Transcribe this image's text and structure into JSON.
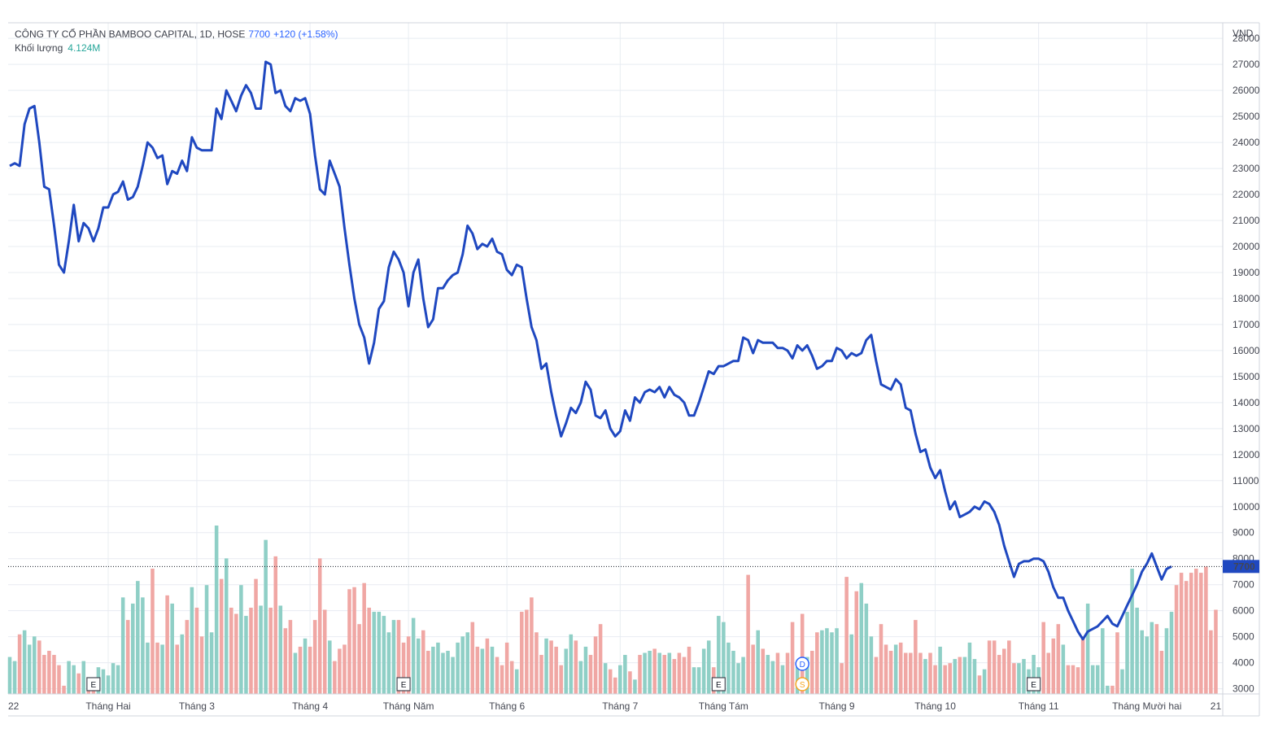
{
  "header": {
    "symbol": "CÔNG TY CỔ PHẦN BAMBOO CAPITAL, 1D, HOSE",
    "last_price": "7700",
    "change": "+120 (+1.58%)",
    "volume_label": "Khối lượng",
    "volume_value": "4.124M"
  },
  "colors": {
    "line": "#1f48c0",
    "vol_up": "#8fcfc6",
    "vol_down": "#f0a7a4",
    "grid": "#e8ecf2",
    "price_label_bg": "#1f48c0"
  },
  "markers": [
    {
      "type": "earnings",
      "label": "E",
      "month": "Tháng Hai"
    },
    {
      "type": "earnings",
      "label": "E",
      "month": "Tháng Năm"
    },
    {
      "type": "earnings",
      "label": "E",
      "month": "Tháng Tám"
    },
    {
      "type": "dividend",
      "label": "D",
      "month": "Tháng Tám"
    },
    {
      "type": "split",
      "label": "S",
      "month": "Tháng Tám"
    },
    {
      "type": "earnings",
      "label": "E",
      "month": "Tháng 11"
    }
  ],
  "chart_data": {
    "type": "line",
    "title": "CÔNG TY CỔ PHẦN BAMBOO CAPITAL, 1D, HOSE",
    "currency": "VND",
    "y_axis_label": "VND",
    "ylim": [
      2800,
      28600
    ],
    "y_ticks": [
      3000,
      4000,
      5000,
      6000,
      7000,
      8000,
      9000,
      10000,
      11000,
      12000,
      13000,
      14000,
      15000,
      16000,
      17000,
      18000,
      19000,
      20000,
      21000,
      22000,
      23000,
      24000,
      25000,
      26000,
      27000,
      28000
    ],
    "x_ticks": [
      {
        "label": "22",
        "i": 0
      },
      {
        "label": "Tháng Hai",
        "i": 20
      },
      {
        "label": "Tháng 3",
        "i": 38
      },
      {
        "label": "Tháng 4",
        "i": 61
      },
      {
        "label": "Tháng Năm",
        "i": 81
      },
      {
        "label": "Tháng 6",
        "i": 101
      },
      {
        "label": "Tháng 7",
        "i": 124
      },
      {
        "label": "Tháng Tám",
        "i": 145
      },
      {
        "label": "Tháng 9",
        "i": 168
      },
      {
        "label": "Tháng 10",
        "i": 188
      },
      {
        "label": "Tháng 11",
        "i": 209
      },
      {
        "label": "Tháng Mười hai",
        "i": 231
      },
      {
        "label": "21",
        "i": 245
      }
    ],
    "last_value": 7700,
    "series": [
      {
        "name": "Close",
        "values": [
          23100,
          23200,
          23100,
          24700,
          25300,
          25400,
          24000,
          22300,
          22200,
          20800,
          19300,
          19000,
          20200,
          21600,
          20200,
          20900,
          20700,
          20200,
          20700,
          21500,
          21500,
          22000,
          22100,
          22500,
          21800,
          21900,
          22300,
          23100,
          24000,
          23800,
          23400,
          23500,
          22400,
          22900,
          22800,
          23300,
          22900,
          24200,
          23800,
          23700,
          23700,
          23700,
          25300,
          24900,
          26000,
          25600,
          25200,
          25800,
          26200,
          25900,
          25300,
          25300,
          27100,
          27000,
          25900,
          26000,
          25400,
          25200,
          25700,
          25600,
          25700,
          25100,
          23500,
          22200,
          22000,
          23300,
          22800,
          22300,
          20700,
          19300,
          18000,
          17000,
          16500,
          15500,
          16300,
          17600,
          17900,
          19200,
          19800,
          19500,
          19000,
          17700,
          19000,
          19500,
          18000,
          16900,
          17200,
          18400,
          18400,
          18700,
          18900,
          19000,
          19700,
          20800,
          20500,
          19900,
          20100,
          20000,
          20300,
          19800,
          19700,
          19100,
          18900,
          19300,
          19200,
          18000,
          16900,
          16400,
          15300,
          15500,
          14400,
          13500,
          12700,
          13200,
          13800,
          13600,
          14000,
          14800,
          14500,
          13500,
          13400,
          13700,
          13000,
          12700,
          12900,
          13700,
          13300,
          14200,
          14000,
          14400,
          14500,
          14400,
          14600,
          14200,
          14600,
          14300,
          14200,
          14000,
          13500,
          13500,
          14000,
          14600,
          15200,
          15100,
          15400,
          15400,
          15500,
          15600,
          15600,
          16500,
          16400,
          15900,
          16400,
          16300,
          16300,
          16300,
          16100,
          16100,
          16000,
          15700,
          16200,
          16000,
          16200,
          15800,
          15300,
          15400,
          15600,
          15600,
          16100,
          16000,
          15700,
          15900,
          15800,
          15900,
          16400,
          16600,
          15600,
          14700,
          14600,
          14500,
          14900,
          14700,
          13800,
          13700,
          12800,
          12100,
          12200,
          11500,
          11100,
          11400,
          10600,
          9900,
          10200,
          9600,
          9700,
          9800,
          10000,
          9900,
          10200,
          10100,
          9800,
          9300,
          8500,
          7900,
          7300,
          7800,
          7900,
          7900,
          8000,
          8000,
          7900,
          7500,
          6900,
          6500,
          6500,
          6000,
          5600,
          5200,
          4900,
          5200,
          5300,
          5400,
          5600,
          5800,
          5500,
          5400,
          5800,
          6200,
          6600,
          7000,
          7500,
          7800,
          8200,
          7700,
          7200,
          7600,
          7700
        ]
      },
      {
        "name": "Khối lượng",
        "values": [
          1.8,
          1.6,
          2.9,
          3.1,
          2.4,
          2.8,
          2.6,
          1.9,
          2.1,
          1.9,
          1.4,
          0.4,
          1.6,
          1.4,
          1.0,
          1.6,
          0.7,
          0.7,
          1.3,
          1.2,
          0.9,
          1.5,
          1.4,
          4.7,
          3.6,
          4.4,
          5.5,
          4.7,
          2.5,
          6.1,
          2.5,
          2.4,
          4.8,
          4.4,
          2.4,
          2.9,
          3.6,
          5.2,
          4.2,
          2.8,
          5.3,
          3.0,
          8.2,
          5.6,
          6.6,
          4.2,
          3.9,
          5.3,
          3.8,
          4.2,
          5.6,
          4.3,
          7.5,
          4.2,
          6.7,
          4.3,
          3.2,
          3.6,
          2.0,
          2.3,
          2.7,
          2.3,
          3.6,
          6.6,
          4.1,
          2.6,
          1.6,
          2.2,
          2.4,
          5.1,
          5.2,
          3.4,
          5.4,
          4.2,
          4.0,
          4.0,
          3.8,
          3.0,
          3.6,
          3.6,
          2.5,
          2.8,
          3.7,
          2.7,
          3.1,
          2.1,
          2.3,
          2.5,
          2.0,
          2.1,
          1.8,
          2.5,
          2.8,
          3.0,
          3.5,
          2.3,
          2.2,
          2.7,
          2.3,
          1.8,
          1.4,
          2.5,
          1.6,
          1.2,
          4.0,
          4.1,
          4.7,
          3.0,
          1.9,
          2.7,
          2.6,
          2.3,
          1.4,
          2.2,
          2.9,
          2.6,
          1.6,
          2.3,
          1.9,
          2.8,
          3.4,
          1.5,
          1.2,
          0.8,
          1.4,
          1.9,
          1.1,
          0.7,
          1.9,
          2.0,
          2.1,
          2.2,
          2.0,
          1.9,
          2.0,
          1.7,
          2.0,
          1.8,
          2.3,
          1.3,
          1.3,
          2.2,
          2.6,
          1.3,
          3.8,
          3.5,
          2.5,
          2.1,
          1.5,
          1.8,
          5.8,
          2.4,
          3.1,
          2.2,
          1.9,
          1.6,
          2.0,
          1.4,
          2.0,
          3.5,
          1.3,
          3.9,
          1.8,
          2.1,
          3.0,
          3.1,
          3.2,
          3.0,
          3.2,
          1.5,
          5.7,
          2.9,
          5.0,
          5.4,
          4.4,
          2.8,
          1.8,
          3.4,
          2.4,
          2.1,
          2.4,
          2.5,
          2.0,
          2.0,
          3.6,
          2.0,
          1.7,
          2.0,
          1.4,
          2.3,
          1.4,
          1.5,
          1.7,
          1.8,
          1.8,
          2.5,
          1.7,
          0.9,
          1.2,
          2.6,
          2.6,
          1.9,
          2.2,
          2.6,
          1.5,
          1.5,
          1.7,
          1.2,
          1.9,
          1.3,
          3.5,
          2.0,
          2.7,
          3.4,
          2.4,
          1.4,
          1.4,
          1.3,
          2.8,
          4.4,
          1.4,
          1.4,
          3.2,
          0.4,
          0.4,
          3.0,
          1.2,
          4.0,
          6.1,
          4.2,
          3.1,
          2.8,
          3.5,
          3.4,
          2.1,
          3.2,
          4.0,
          5.3,
          5.9,
          5.5,
          5.9,
          6.1,
          5.9,
          6.2,
          3.1,
          4.1
        ],
        "unit": "M"
      }
    ]
  }
}
